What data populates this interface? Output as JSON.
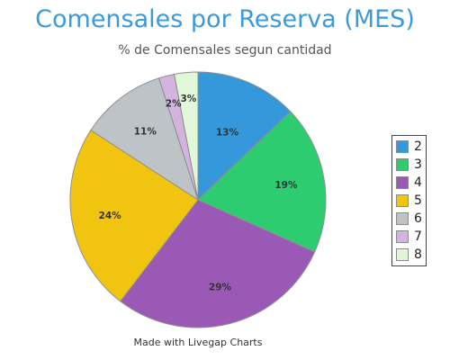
{
  "chart_data": {
    "type": "pie",
    "title": "Comensales por Reserva (MES)",
    "subtitle": "% de Comensales segun cantidad",
    "credit": "Made with Livegap Charts",
    "legend_position": "right",
    "slices": [
      {
        "name": "2",
        "value": 13,
        "label": "13%",
        "color": "#3498db"
      },
      {
        "name": "3",
        "value": 19,
        "label": "19%",
        "color": "#2ecc71"
      },
      {
        "name": "4",
        "value": 29,
        "label": "29%",
        "color": "#9b59b6"
      },
      {
        "name": "5",
        "value": 24,
        "label": "24%",
        "color": "#f1c40f"
      },
      {
        "name": "6",
        "value": 11,
        "label": "11%",
        "color": "#bdc3c7"
      },
      {
        "name": "7",
        "value": 2,
        "label": "2%",
        "color": "#d2b4de"
      },
      {
        "name": "8",
        "value": 3,
        "label": "3%",
        "color": "#e0f8d8"
      }
    ]
  }
}
